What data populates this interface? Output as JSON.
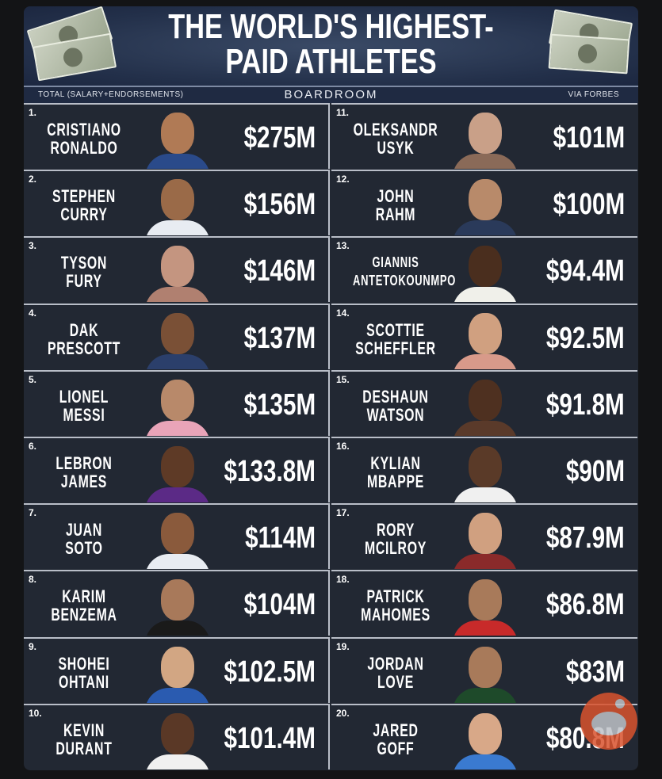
{
  "header": {
    "title_line1": "THE WORLD'S HIGHEST-",
    "title_line2": "PAID ATHLETES",
    "subtitle_left": "TOTAL (SALARY+ENDORSEMENTS)",
    "brand": "BOARDROOM",
    "source": "VIA FORBES"
  },
  "athletes": [
    {
      "rank": "1.",
      "name1": "CRISTIANO",
      "name2": "RONALDO",
      "earnings": "$275M",
      "shirt": "#2a4a8a",
      "skin": "#b07a55"
    },
    {
      "rank": "2.",
      "name1": "STEPHEN",
      "name2": "CURRY",
      "earnings": "$156M",
      "shirt": "#e8ecf2",
      "skin": "#9a6a48"
    },
    {
      "rank": "3.",
      "name1": "TYSON",
      "name2": "FURY",
      "earnings": "$146M",
      "shirt": "#b08070",
      "skin": "#c49580"
    },
    {
      "rank": "4.",
      "name1": "DAK",
      "name2": "PRESCOTT",
      "earnings": "$137M",
      "shirt": "#2b3f6b",
      "skin": "#7a5036"
    },
    {
      "rank": "5.",
      "name1": "LIONEL",
      "name2": "MESSI",
      "earnings": "$135M",
      "shirt": "#e9a4b8",
      "skin": "#b8896a"
    },
    {
      "rank": "6.",
      "name1": "LEBRON",
      "name2": "JAMES",
      "earnings": "$133.8M",
      "shirt": "#5b2a86",
      "skin": "#5e3a26"
    },
    {
      "rank": "7.",
      "name1": "JUAN",
      "name2": "SOTO",
      "earnings": "$114M",
      "shirt": "#e8ecf2",
      "skin": "#8a5a3c"
    },
    {
      "rank": "8.",
      "name1": "KARIM",
      "name2": "BENZEMA",
      "earnings": "$104M",
      "shirt": "#1a1a1a",
      "skin": "#a8795a"
    },
    {
      "rank": "9.",
      "name1": "SHOHEI",
      "name2": "OHTANI",
      "earnings": "$102.5M",
      "shirt": "#2a5bb0",
      "skin": "#d2a683"
    },
    {
      "rank": "10.",
      "name1": "KEVIN",
      "name2": "DURANT",
      "earnings": "$101.4M",
      "shirt": "#f0f0f0",
      "skin": "#5a3826"
    },
    {
      "rank": "11.",
      "name1": "OLEKSANDR",
      "name2": "USYK",
      "earnings": "$101M",
      "shirt": "#8a6a58",
      "skin": "#c9a088"
    },
    {
      "rank": "12.",
      "name1": "JOHN",
      "name2": "RAHM",
      "earnings": "$100M",
      "shirt": "#2a3a5a",
      "skin": "#b88a6a"
    },
    {
      "rank": "13.",
      "name1": "GIANNIS",
      "name2": "ANTETOKOUNMPO",
      "earnings": "$94.4M",
      "shirt": "#f0f0ea",
      "skin": "#4a2e1e"
    },
    {
      "rank": "14.",
      "name1": "SCOTTIE",
      "name2": "SCHEFFLER",
      "earnings": "$92.5M",
      "shirt": "#d89a8a",
      "skin": "#d0a080"
    },
    {
      "rank": "15.",
      "name1": "DESHAUN",
      "name2": "WATSON",
      "earnings": "$91.8M",
      "shirt": "#5a3a2a",
      "skin": "#4e3020"
    },
    {
      "rank": "16.",
      "name1": "KYLIAN",
      "name2": "MBAPPE",
      "earnings": "$90M",
      "shirt": "#f0f0f0",
      "skin": "#5a3a28"
    },
    {
      "rank": "17.",
      "name1": "RORY",
      "name2": "MCILROY",
      "earnings": "$87.9M",
      "shirt": "#8a2a2a",
      "skin": "#d0a080"
    },
    {
      "rank": "18.",
      "name1": "PATRICK",
      "name2": "MAHOMES",
      "earnings": "$86.8M",
      "shirt": "#c82a2a",
      "skin": "#a87a5a"
    },
    {
      "rank": "19.",
      "name1": "JORDAN",
      "name2": "LOVE",
      "earnings": "$83M",
      "shirt": "#1e4a2a",
      "skin": "#a87a5a"
    },
    {
      "rank": "20.",
      "name1": "JARED",
      "name2": "GOFF",
      "earnings": "$80.8M",
      "shirt": "#3a7ad0",
      "skin": "#d8a888"
    }
  ],
  "watermark": "reddit-logo-icon"
}
